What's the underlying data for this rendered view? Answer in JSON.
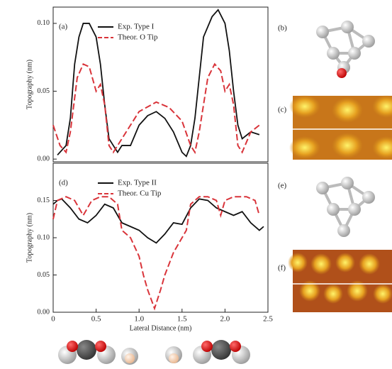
{
  "chart_data": [
    {
      "type": "line",
      "panel": "(a)",
      "y_label": "Topography (nm)",
      "xlim": [
        0,
        2.5
      ],
      "ylim": [
        -0.002,
        0.112
      ],
      "yticks": [
        {
          "value": 0,
          "label": "0.00"
        },
        0.05,
        {
          "value": 0.1,
          "label": "0.10"
        }
      ],
      "series": [
        {
          "name": "Exp. Type I",
          "color": "#111111",
          "dashed": false,
          "x": [
            0.05,
            0.15,
            0.2,
            0.25,
            0.3,
            0.35,
            0.42,
            0.5,
            0.55,
            0.6,
            0.65,
            0.7,
            0.75,
            0.8,
            0.9,
            1.0,
            1.1,
            1.2,
            1.3,
            1.4,
            1.5,
            1.55,
            1.6,
            1.65,
            1.7,
            1.75,
            1.85,
            1.92,
            2.0,
            2.05,
            2.1,
            2.15,
            2.2,
            2.3,
            2.4
          ],
          "values": [
            0.003,
            0.01,
            0.03,
            0.07,
            0.09,
            0.1,
            0.1,
            0.09,
            0.07,
            0.04,
            0.015,
            0.01,
            0.005,
            0.01,
            0.01,
            0.025,
            0.032,
            0.035,
            0.03,
            0.02,
            0.005,
            0.002,
            0.01,
            0.03,
            0.06,
            0.09,
            0.105,
            0.11,
            0.1,
            0.08,
            0.05,
            0.025,
            0.015,
            0.02,
            0.018
          ]
        },
        {
          "name": "Theor. O Tip",
          "color": "#d9343a",
          "dashed": true,
          "x": [
            0,
            0.08,
            0.15,
            0.2,
            0.28,
            0.35,
            0.42,
            0.5,
            0.55,
            0.6,
            0.65,
            0.7,
            0.8,
            0.9,
            1.0,
            1.2,
            1.35,
            1.5,
            1.6,
            1.65,
            1.7,
            1.8,
            1.88,
            1.95,
            2.0,
            2.05,
            2.1,
            2.15,
            2.2,
            2.3,
            2.4
          ],
          "values": [
            0.025,
            0.01,
            0.005,
            0.02,
            0.06,
            0.07,
            0.068,
            0.05,
            0.055,
            0.04,
            0.01,
            0.005,
            0.015,
            0.025,
            0.035,
            0.042,
            0.038,
            0.028,
            0.01,
            0.005,
            0.02,
            0.06,
            0.07,
            0.065,
            0.05,
            0.055,
            0.04,
            0.01,
            0.005,
            0.02,
            0.025
          ]
        }
      ]
    },
    {
      "type": "line",
      "panel": "(d)",
      "y_label": "Topography (nm)",
      "x_label": "Lateral Distance (nm)",
      "xlim": [
        0,
        2.5
      ],
      "ylim": [
        0,
        0.2
      ],
      "xticks": [
        0,
        0.5,
        {
          "value": 1,
          "label": "1.0"
        },
        1.5,
        {
          "value": 2,
          "label": "2.0"
        },
        2.5
      ],
      "yticks": [
        {
          "value": 0,
          "label": "0.00"
        },
        0.05,
        {
          "value": 0.1,
          "label": "0.10"
        },
        0.15
      ],
      "series": [
        {
          "name": "Exp. Type II",
          "color": "#111111",
          "dashed": false,
          "x": [
            0,
            0.05,
            0.1,
            0.2,
            0.3,
            0.4,
            0.5,
            0.6,
            0.7,
            0.8,
            0.9,
            1.0,
            1.1,
            1.2,
            1.3,
            1.4,
            1.5,
            1.6,
            1.7,
            1.8,
            1.9,
            2.0,
            2.1,
            2.2,
            2.3,
            2.4,
            2.45
          ],
          "values": [
            0.145,
            0.15,
            0.152,
            0.14,
            0.125,
            0.12,
            0.13,
            0.145,
            0.14,
            0.12,
            0.115,
            0.11,
            0.1,
            0.093,
            0.105,
            0.12,
            0.118,
            0.14,
            0.152,
            0.15,
            0.14,
            0.135,
            0.13,
            0.135,
            0.12,
            0.11,
            0.115
          ]
        },
        {
          "name": "Theor. Cu Tip",
          "color": "#d9343a",
          "dashed": true,
          "x": [
            0,
            0.05,
            0.15,
            0.25,
            0.35,
            0.45,
            0.55,
            0.65,
            0.75,
            0.8,
            0.9,
            1.0,
            1.05,
            1.1,
            1.18,
            1.25,
            1.3,
            1.4,
            1.5,
            1.55,
            1.6,
            1.7,
            1.8,
            1.9,
            1.95,
            2.0,
            2.1,
            2.25,
            2.35,
            2.4
          ],
          "values": [
            0.125,
            0.15,
            0.155,
            0.15,
            0.13,
            0.15,
            0.155,
            0.155,
            0.145,
            0.11,
            0.1,
            0.075,
            0.05,
            0.03,
            0.005,
            0.03,
            0.05,
            0.08,
            0.1,
            0.11,
            0.145,
            0.155,
            0.155,
            0.15,
            0.13,
            0.15,
            0.155,
            0.155,
            0.15,
            0.13
          ]
        }
      ]
    }
  ],
  "side_labels": [
    "(b)",
    "(c)",
    "(e)",
    "(f)"
  ]
}
